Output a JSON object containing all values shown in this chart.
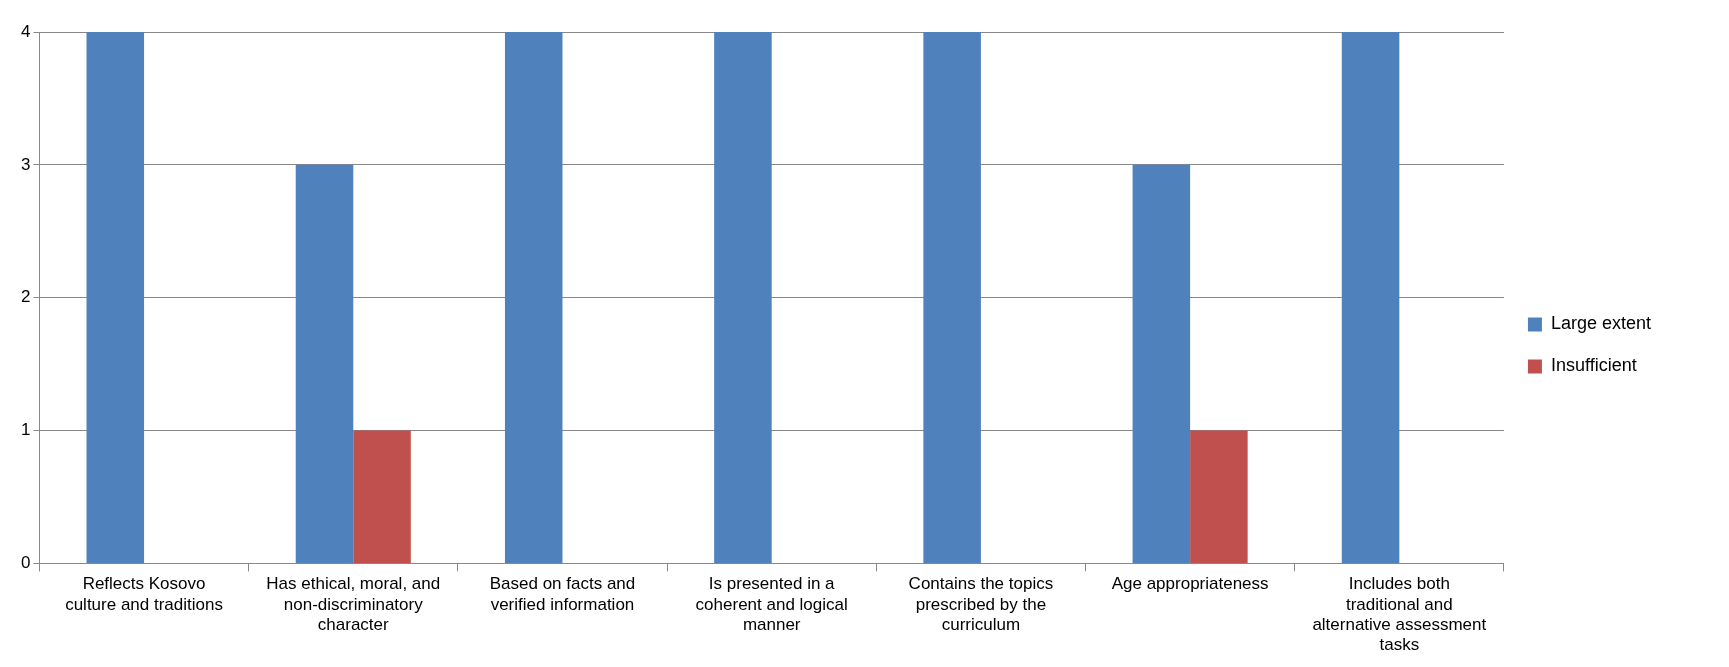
{
  "chart_data": {
    "type": "bar",
    "categories": [
      "Reflects Kosovo culture and traditions",
      "Has ethical, moral, and non-discriminatory character",
      "Based on facts and verified information",
      "Is presented in a coherent and logical manner",
      "Contains the topics prescribed by the curriculum",
      "Age appropriateness",
      "Includes both traditional and alternative assessment tasks"
    ],
    "series": [
      {
        "name": "Large extent",
        "color": "#4f81bd",
        "values": [
          4,
          3,
          4,
          4,
          4,
          3,
          4
        ]
      },
      {
        "name": "Insufficient",
        "color": "#c0504d",
        "values": [
          0,
          1,
          0,
          0,
          0,
          1,
          0
        ]
      }
    ],
    "ylim": [
      0,
      4
    ],
    "yticks": [
      0,
      1,
      2,
      3,
      4
    ],
    "grid": "y",
    "legend": "right"
  }
}
